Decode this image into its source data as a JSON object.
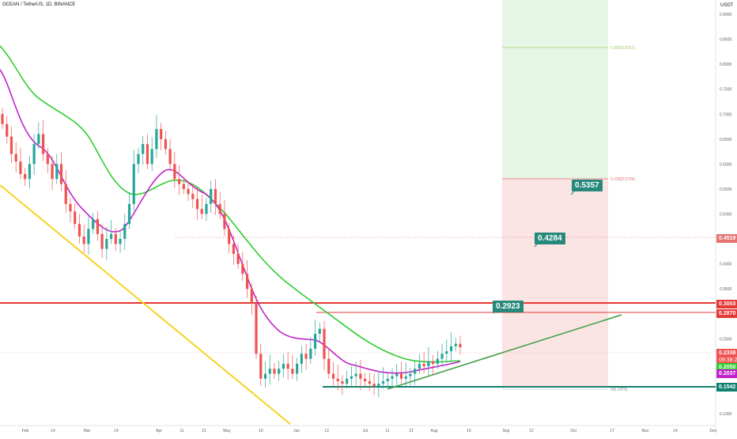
{
  "header": {
    "title": "OCEAN / TetherUS, 1D, BINANCE",
    "unit": "USDT"
  },
  "colors": {
    "up": "#26a69a",
    "down": "#ef5350",
    "ema_fast": "#c223c9",
    "ema_slow": "#2ecc2e",
    "trend_down": "#f5d31f",
    "trend_up": "#43a047",
    "resistance": "#e53935",
    "support": "#12806e",
    "badge": "#26897b"
  },
  "chart_data": {
    "type": "candlestick",
    "x_labels": [
      "Feb",
      "14",
      "Mar",
      "14",
      "Apr",
      "11",
      "21",
      "May",
      "16",
      "Jun",
      "13",
      "Jul",
      "11",
      "21",
      "Aug",
      "15",
      "Sep",
      "12",
      "Oct",
      "17",
      "Nov",
      "14",
      "Dec"
    ],
    "y_ticks": [
      "0.9000",
      "0.8500",
      "0.8000",
      "0.7500",
      "0.7000",
      "0.6500",
      "0.6000",
      "0.5500",
      "0.5000",
      "0.4500",
      "0.4000",
      "0.3500",
      "0.3000",
      "0.2500",
      "0.2000",
      "0.1500",
      "0.1000"
    ],
    "ylim": [
      0.08,
      0.92
    ],
    "candles_seed": [
      0.68,
      0.655,
      0.62,
      0.605,
      0.58,
      0.57,
      0.6,
      0.64,
      0.66,
      0.62,
      0.6,
      0.57,
      0.6,
      0.56,
      0.52,
      0.505,
      0.48,
      0.455,
      0.44,
      0.47,
      0.49,
      0.46,
      0.43,
      0.45,
      0.46,
      0.44,
      0.45,
      0.48,
      0.52,
      0.6,
      0.62,
      0.64,
      0.6,
      0.63,
      0.67,
      0.65,
      0.63,
      0.6,
      0.57,
      0.56,
      0.55,
      0.54,
      0.53,
      0.51,
      0.5,
      0.52,
      0.55,
      0.52,
      0.5,
      0.47,
      0.44,
      0.42,
      0.4,
      0.38,
      0.35,
      0.32,
      0.22,
      0.17,
      0.18,
      0.19,
      0.18,
      0.19,
      0.2,
      0.19,
      0.18,
      0.2,
      0.22,
      0.21,
      0.23,
      0.26,
      0.27,
      0.21,
      0.18,
      0.17,
      0.165,
      0.16,
      0.17,
      0.175,
      0.18,
      0.17,
      0.165,
      0.16,
      0.155,
      0.16,
      0.165,
      0.17,
      0.175,
      0.18,
      0.17,
      0.175,
      0.18,
      0.19,
      0.2,
      0.195,
      0.205,
      0.2,
      0.21,
      0.22,
      0.225,
      0.235,
      0.24,
      0.233
    ],
    "annotations": {
      "target_label": "0.382(0.8331)",
      "stop_label": "0.236(0.5709)",
      "base_label": "0(0.1470)"
    },
    "badges": [
      "0.5357",
      "0.4284",
      "0.2923"
    ],
    "price_tags": {
      "red_top": "0.3003",
      "red_mid": "0.2870",
      "hline": "0.4519",
      "current": "0.2338",
      "current_sub": "09:38:21",
      "ema_slow_tag": "0.2050",
      "ema_fast_tag": "0.2037",
      "support": "0.1542"
    }
  }
}
